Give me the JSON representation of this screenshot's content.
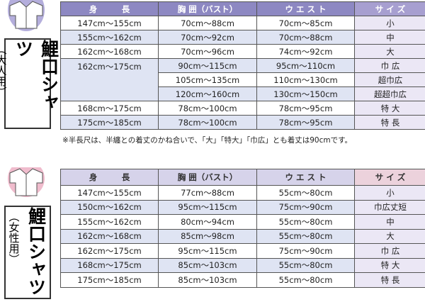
{
  "adult": {
    "title": "鯉口シャツ",
    "subtitle": "（大人用）",
    "headers": [
      "身　　　長",
      "胸 囲（バスト）",
      "ウ エ ス ト",
      "サ イ ズ"
    ],
    "rows": [
      {
        "height": "147cm～155cm",
        "chest": "70cm～88cm",
        "waist": "70cm～85cm",
        "size": "小"
      },
      {
        "height": "155cm～162cm",
        "chest": "70cm～92cm",
        "waist": "70cm～88cm",
        "size": "中"
      },
      {
        "height": "162cm～168cm",
        "chest": "70cm～96cm",
        "waist": "74cm～92cm",
        "size": "大"
      },
      {
        "height": "162cm～175cm",
        "chest": "90cm～115cm",
        "waist": "95cm～110cm",
        "size": "巾 広"
      },
      {
        "chest": "105cm～135cm",
        "waist": "110cm～130cm",
        "size": "超巾広"
      },
      {
        "chest": "120cm～160cm",
        "waist": "130cm～150cm",
        "size": "超超巾広"
      },
      {
        "height": "168cm～175cm",
        "chest": "78cm～100cm",
        "waist": "78cm～95cm",
        "size": "特 大"
      },
      {
        "height": "175cm～185cm",
        "chest": "78cm～100cm",
        "waist": "78cm～95cm",
        "size": "特 長"
      }
    ],
    "note": "※半長尺は、半纏との着丈のかね合いで、「大」「特大」「巾広」とも着丈は90cmです。"
  },
  "women": {
    "title": "鯉口シャツ",
    "subtitle": "（女性用）",
    "headers": [
      "身　　　長",
      "胸 囲（バスト）",
      "ウ エ ス ト",
      "サ イ ズ"
    ],
    "rows": [
      {
        "height": "147cm～155cm",
        "chest": "77cm～88cm",
        "waist": "55cm～80cm",
        "size": "小"
      },
      {
        "height": "150cm～162cm",
        "chest": "95cm～115cm",
        "waist": "75cm～90cm",
        "size": "巾広丈短"
      },
      {
        "height": "155cm～162cm",
        "chest": "80cm～94cm",
        "waist": "55cm～80cm",
        "size": "中"
      },
      {
        "height": "162cm～168cm",
        "chest": "85cm～98cm",
        "waist": "55cm～80cm",
        "size": "大"
      },
      {
        "height": "162cm～175cm",
        "chest": "95cm～115cm",
        "waist": "75cm～90cm",
        "size": "巾 広"
      },
      {
        "height": "168cm～175cm",
        "chest": "85cm～103cm",
        "waist": "55cm～80cm",
        "size": "特 大"
      },
      {
        "height": "175cm～185cm",
        "chest": "85cm～103cm",
        "waist": "55cm～80cm",
        "size": "特 長"
      }
    ]
  }
}
